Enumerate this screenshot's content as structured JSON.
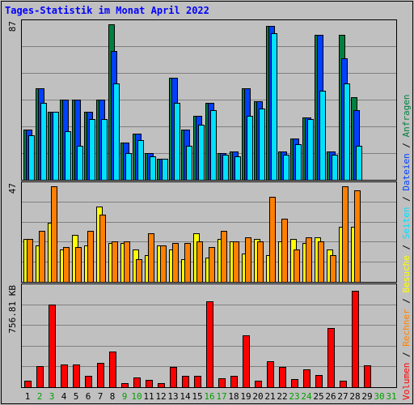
{
  "chart_data": {
    "type": "bar",
    "title": "Tages-Statistik im Monat April 2022",
    "categories": [
      "1",
      "2",
      "3",
      "4",
      "5",
      "6",
      "7",
      "8",
      "9",
      "10",
      "11",
      "12",
      "13",
      "14",
      "15",
      "16",
      "17",
      "18",
      "19",
      "20",
      "21",
      "22",
      "23",
      "24",
      "25",
      "26",
      "27",
      "28",
      "29",
      "30",
      "31"
    ],
    "weekend_days": [
      "2",
      "3",
      "9",
      "10",
      "16",
      "17",
      "23",
      "24",
      "30",
      "31"
    ],
    "panels": [
      {
        "name": "requests",
        "ymax_label": "87",
        "ymax": 87,
        "series": [
          {
            "name": "Anfragen",
            "color": "#008040",
            "values": [
              28,
              51,
              38,
              45,
              45,
              38,
              45,
              87,
              21,
              26,
              15,
              12,
              57,
              28,
              36,
              43,
              15,
              16,
              51,
              44,
              86,
              16,
              23,
              35,
              81,
              16,
              81,
              46
            ]
          },
          {
            "name": "Dateien",
            "color": "#0040ff",
            "values": [
              28,
              51,
              38,
              45,
              45,
              38,
              45,
              72,
              21,
              26,
              15,
              12,
              57,
              28,
              36,
              43,
              15,
              16,
              51,
              44,
              86,
              16,
              23,
              35,
              81,
              16,
              68,
              39
            ]
          },
          {
            "name": "Seiten",
            "color": "#00e0ff",
            "values": [
              25,
              43,
              38,
              27,
              19,
              34,
              34,
              54,
              15,
              22,
              13,
              12,
              43,
              19,
              31,
              39,
              14,
              13,
              36,
              40,
              82,
              14,
              20,
              34,
              50,
              14,
              54,
              19
            ]
          }
        ]
      },
      {
        "name": "visits",
        "ymax_label": "47",
        "ymax": 47,
        "series": [
          {
            "name": "Besuche",
            "color": "#ffff00",
            "values": [
              21,
              18,
              29,
              16,
              23,
              18,
              37,
              19,
              19,
              16,
              13,
              18,
              16,
              11,
              24,
              12,
              21,
              20,
              14,
              21,
              13,
              20,
              21,
              19,
              22,
              16,
              27,
              27
            ]
          },
          {
            "name": "Rechner",
            "color": "#ff8000",
            "values": [
              21,
              25,
              47,
              17,
              17,
              25,
              33,
              20,
              20,
              11,
              24,
              18,
              19,
              19,
              20,
              17,
              25,
              20,
              22,
              20,
              42,
              31,
              16,
              22,
              20,
              13,
              47,
              45
            ]
          }
        ]
      },
      {
        "name": "volume",
        "ymax_label": "756.81 KB",
        "ymax": 756.81,
        "series": [
          {
            "name": "Volumen",
            "color": "#ff0000",
            "values": [
              47,
              160,
              630,
              175,
              175,
              85,
              185,
              270,
              32,
              75,
              55,
              30,
              155,
              85,
              85,
              660,
              70,
              85,
              395,
              50,
              200,
              155,
              60,
              135,
              90,
              450,
              50,
              740,
              170
            ]
          }
        ]
      }
    ],
    "legend_vertical": [
      "Volumen",
      "Rechner",
      "Besuche",
      "Seiten",
      "Dateien",
      "Anfragen"
    ],
    "separator": " / ",
    "colors": {
      "background": "#c0c0c0",
      "plot_bg": "#c0c0c0",
      "grid": "#808080",
      "weekday_label": "#000000",
      "weekend_label": "#00a000",
      "title": "#0000ff"
    },
    "grid": true
  }
}
